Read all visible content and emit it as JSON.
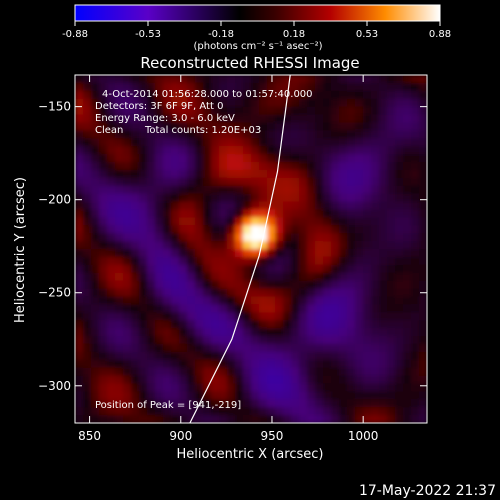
{
  "chart_data": {
    "type": "heatmap",
    "title": "Reconstructed RHESSI Image",
    "xlabel": "Heliocentric X (arcsec)",
    "ylabel": "Heliocentric Y (arcsec)",
    "xlim": [
      842,
      1035
    ],
    "ylim": [
      -320,
      -133
    ],
    "xticks": [
      850,
      900,
      950,
      1000
    ],
    "yticks": [
      -150,
      -200,
      -250,
      -300
    ],
    "colorbar": {
      "ticks": [
        "-0.88",
        "-0.53",
        "-0.18",
        "0.18",
        "0.53",
        "0.88"
      ],
      "range": [
        -0.88,
        0.88
      ],
      "units": "(photons cm⁻² s⁻¹ asec⁻²)",
      "colormap": [
        "#0000ff",
        "#5a00c8",
        "#000000",
        "#a00000",
        "#ff7800",
        "#ffffff"
      ]
    },
    "annotations": {
      "time": "4-Oct-2014 01:56:28.000 to 01:57:40.000",
      "detectors": "Detectors: 3F 6F 9F, Att 0",
      "energy": "Energy Range: 3.0 - 6.0 keV",
      "method": "Clean",
      "counts": "Total counts: 1.20E+03",
      "peak": "Position of Peak = [941,-219]"
    },
    "peak": {
      "x": 941,
      "y": -219,
      "value": 0.88
    },
    "limb": [
      [
        960,
        -133
      ],
      [
        953,
        -185
      ],
      [
        943,
        -230
      ],
      [
        928,
        -275
      ],
      [
        905,
        -320
      ]
    ]
  },
  "timestamp": "17-May-2022 21:37"
}
